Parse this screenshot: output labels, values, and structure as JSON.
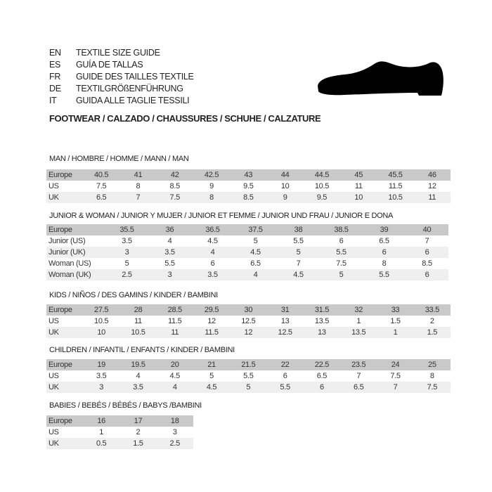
{
  "header": {
    "languages": [
      {
        "code": "EN",
        "title": "TEXTILE SIZE GUIDE"
      },
      {
        "code": "ES",
        "title": "GUÍA DE TALLAS"
      },
      {
        "code": "FR",
        "title": "GUIDE DES TAILLES TEXTILE"
      },
      {
        "code": "DE",
        "title": "TEXTILGRÖßENFÜHRUNG"
      },
      {
        "code": "IT",
        "title": "GUIDA ALLE TAGLIE TESSILI"
      }
    ],
    "footwear_title": "FOOTWEAR / CALZADO / CHAUSSURES / SCHUHE / CALZATURE",
    "icon": "shoe-icon"
  },
  "sections": [
    {
      "label": "MAN / HOMBRE / HOMME / MANN / MAN",
      "rows": [
        {
          "label": "Europe",
          "values": [
            "40.5",
            "41",
            "42",
            "42.5",
            "43",
            "44",
            "44.5",
            "45",
            "45.5",
            "46"
          ]
        },
        {
          "label": "US",
          "values": [
            "7.5",
            "8",
            "8.5",
            "9",
            "9.5",
            "10",
            "10.5",
            "11",
            "11.5",
            "12"
          ]
        },
        {
          "label": "UK",
          "values": [
            "6.5",
            "7",
            "7.5",
            "8",
            "8.5",
            "9",
            "9.5",
            "10",
            "10.5",
            "11"
          ]
        }
      ]
    },
    {
      "label": "JUNIOR & WOMAN / JUNIOR Y MUJER / JUNIOR ET FEMME / JUNIOR UND FRAU / JUNIOR E DONA",
      "rows": [
        {
          "label": "Europe",
          "values": [
            "35.5",
            "36",
            "36.5",
            "37.5",
            "38",
            "38.5",
            "39",
            "40"
          ]
        },
        {
          "label": "Junior (US)",
          "values": [
            "3.5",
            "4",
            "4.5",
            "5",
            "5.5",
            "6",
            "6.5",
            "7"
          ]
        },
        {
          "label": "Junior (UK)",
          "values": [
            "3",
            "3.5",
            "4",
            "4.5",
            "5",
            "5.5",
            "6",
            "6"
          ]
        },
        {
          "label": "Woman (US)",
          "values": [
            "5",
            "5.5",
            "6",
            "6.5",
            "7",
            "7.5",
            "8",
            "8.5"
          ]
        },
        {
          "label": "Woman (UK)",
          "values": [
            "2.5",
            "3",
            "3.5",
            "4",
            "4.5",
            "5",
            "5.5",
            "6"
          ]
        }
      ]
    },
    {
      "label": "KIDS / NIÑOS / DES GAMINS / KINDER / BAMBINI",
      "rows": [
        {
          "label": "Europe",
          "values": [
            "27.5",
            "28",
            "28.5",
            "29.5",
            "30",
            "31",
            "31.5",
            "32",
            "33",
            "33.5"
          ]
        },
        {
          "label": "US",
          "values": [
            "10.5",
            "11",
            "11.5",
            "12",
            "12.5",
            "13",
            "13.5",
            "1",
            "1.5",
            "2"
          ]
        },
        {
          "label": "UK",
          "values": [
            "10",
            "10.5",
            "11",
            "11.5",
            "12",
            "12.5",
            "13",
            "13.5",
            "1",
            "1.5"
          ]
        }
      ]
    },
    {
      "label": "CHILDREN / INFANTIL / ENFANTS / KINDER / BAMBINI",
      "rows": [
        {
          "label": "Europe",
          "values": [
            "19",
            "19.5",
            "20",
            "21",
            "21.5",
            "22",
            "22.5",
            "23.5",
            "24",
            "25"
          ]
        },
        {
          "label": "US",
          "values": [
            "3.5",
            "4",
            "4.5",
            "5",
            "5.5",
            "6",
            "6.5",
            "7",
            "7.5",
            "8"
          ]
        },
        {
          "label": "UK",
          "values": [
            "3",
            "3.5",
            "4",
            "4.5",
            "5",
            "5.5",
            "6",
            "6.5",
            "7",
            "7.5"
          ]
        }
      ]
    },
    {
      "label": "BABIES  / BEBÉS / BÉBÉS / BABYS /BAMBINI",
      "rows": [
        {
          "label": "Europe",
          "values": [
            "16",
            "17",
            "18"
          ]
        },
        {
          "label": "US",
          "values": [
            "1",
            "2",
            "3"
          ]
        },
        {
          "label": "UK",
          "values": [
            "0.5",
            "1.5",
            "2.5"
          ]
        }
      ]
    }
  ]
}
